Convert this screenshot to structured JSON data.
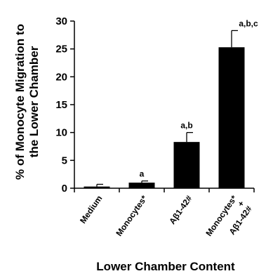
{
  "chart_data": {
    "type": "bar",
    "categories": [
      "Medium",
      "Monocytes*",
      "Aβ1-42#",
      "Monocytes* + Aβ1-42#"
    ],
    "category_label_lines": [
      [
        "Medium"
      ],
      [
        "Monocytes*"
      ],
      [
        "Aβ1-42#"
      ],
      [
        "Monocytes*",
        "+",
        "Aβ1-42#"
      ]
    ],
    "values": [
      0.3,
      1.0,
      8.3,
      25.3
    ],
    "errors": [
      0.4,
      0.3,
      1.7,
      3.0
    ],
    "annotations": [
      "",
      "a",
      "a,b",
      "a,b,c"
    ],
    "ylabel_lines": [
      "% of Monocyte Migration to",
      "the Lower Chamber"
    ],
    "xlabel": "Lower Chamber Content",
    "ylim": [
      0,
      30
    ],
    "yticks": [
      0,
      5,
      10,
      15,
      20,
      25,
      30
    ],
    "bar_color": "#000000",
    "grid": false,
    "legend": "none"
  }
}
